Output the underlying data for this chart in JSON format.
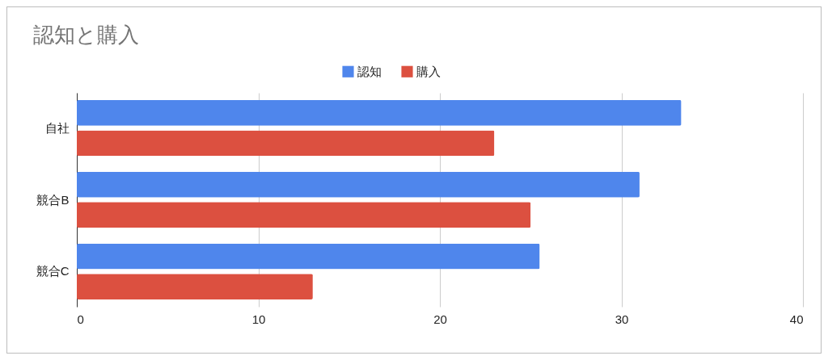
{
  "chart_data": {
    "type": "bar",
    "orientation": "horizontal",
    "title": "認知と購入",
    "categories": [
      "自社",
      "競合B",
      "競合C"
    ],
    "series": [
      {
        "name": "認知",
        "color": "#4f86ec",
        "values": [
          33.3,
          31,
          25.5
        ]
      },
      {
        "name": "購入",
        "color": "#dc5040",
        "values": [
          23,
          25,
          13
        ]
      }
    ],
    "xlim": [
      0,
      40
    ],
    "xticks": [
      0,
      10,
      20,
      30,
      40
    ],
    "grid": "x",
    "legend": "top"
  }
}
